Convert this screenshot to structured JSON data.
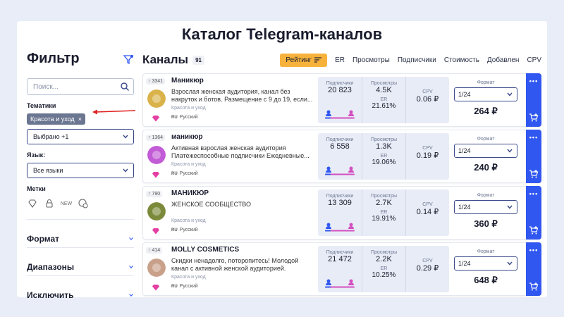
{
  "page_title": "Каталог Telegram-каналов",
  "sidebar": {
    "title": "Фильтр",
    "search_placeholder": "Поиск...",
    "topics_label": "Тематики",
    "topic_tag": "Красота и уход",
    "topic_tag_close": "×",
    "selected": "Выбрано +1",
    "language_label": "Язык:",
    "language_value": "Все языки",
    "marks_label": "Метки",
    "mark_new": "NEW",
    "sections": [
      "Формат",
      "Диапазоны",
      "Исключить"
    ]
  },
  "main": {
    "title": "Каналы",
    "count": "91",
    "sort_tabs": [
      "Рейтинг",
      "ER",
      "Просмотры",
      "Подписчики",
      "Стоимость",
      "Добавлен",
      "CPV"
    ],
    "labels": {
      "subscribers": "Подписчики",
      "views": "Просмотры",
      "er": "ER",
      "cpv": "CPV",
      "format": "Формат"
    },
    "channels": [
      {
        "rank": "↑ 3341",
        "name": "Маникюр",
        "desc": "Взрослая женская аудитория, канал без накруток и ботов. Размещение с 9 до 19, если...",
        "category": "Красота и уход",
        "lang_code": "RU",
        "lang": "Русский",
        "subscribers": "20 823",
        "views": "4.5K",
        "er": "21.61%",
        "cpv": "0.06 ₽",
        "format": "1/24",
        "price": "264 ₽"
      },
      {
        "rank": "↑ 1364",
        "name": "маникюр",
        "desc": "Активная взрослая женская аудитория Платежеспособные подписчики Ежедневные...",
        "category": "Красота и уход",
        "lang_code": "RU",
        "lang": "Русский",
        "subscribers": "6 558",
        "views": "1.3K",
        "er": "19.06%",
        "cpv": "0.19 ₽",
        "format": "1/24",
        "price": "240 ₽"
      },
      {
        "rank": "↑ 790",
        "name": "МАНИКЮР",
        "desc": "ЖЕНСКОЕ СООБЩЕСТВО",
        "category": "Красота и уход",
        "lang_code": "RU",
        "lang": "Русский",
        "subscribers": "13 309",
        "views": "2.7K",
        "er": "19.91%",
        "cpv": "0.14 ₽",
        "format": "1/24",
        "price": "360 ₽"
      },
      {
        "rank": "↑ 414",
        "name": "MOLLY COSMETICS",
        "desc": "Скидки ненадолго, поторопитесь! Молодой канал с активной женской аудиторией.",
        "category": "Красота и уход",
        "lang_code": "RU",
        "lang": "Русский",
        "subscribers": "21 472",
        "views": "2.2K",
        "er": "10.25%",
        "cpv": "0.29 ₽",
        "format": "1/24",
        "price": "648 ₽"
      }
    ]
  },
  "colors": {
    "accent": "#3057f0",
    "sort_active": "#f7b23c",
    "arrow": "#e02020"
  }
}
